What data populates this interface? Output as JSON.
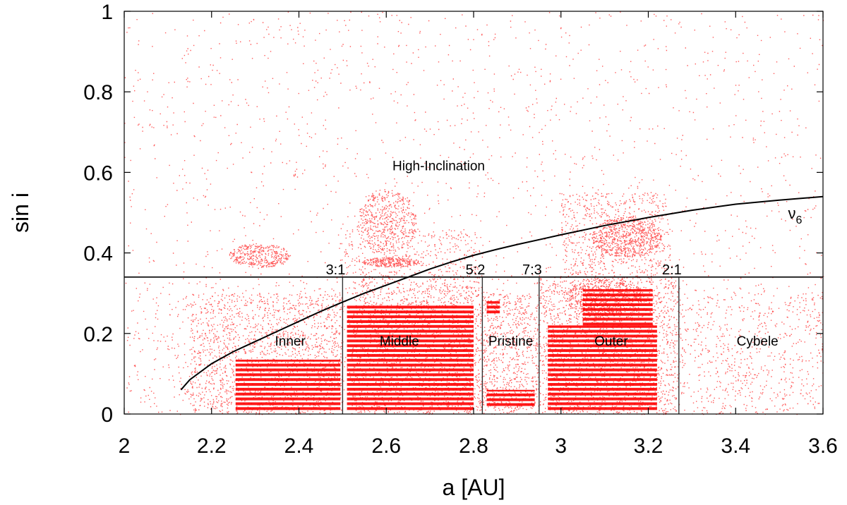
{
  "chart_data": {
    "type": "scatter",
    "xlabel": "a [AU]",
    "ylabel": "sin i",
    "xlim": [
      2,
      3.6
    ],
    "ylim": [
      0,
      1
    ],
    "x_ticks": [
      2,
      2.2,
      2.4,
      2.6,
      2.8,
      3,
      3.2,
      3.4,
      3.6
    ],
    "x_tick_labels": [
      "2",
      "2.2",
      "2.4",
      "2.6",
      "2.8",
      "3",
      "3.2",
      "3.4",
      "3.6"
    ],
    "y_ticks": [
      0,
      0.2,
      0.4,
      0.6,
      0.8,
      1
    ],
    "y_tick_labels": [
      "0",
      "0.2",
      "0.4",
      "0.6",
      "0.8",
      "1"
    ],
    "grid": false,
    "point_color": "#ff0000",
    "line_color": "#000000",
    "boundary_sin_i": 0.34,
    "resonances": [
      {
        "label": "3:1",
        "a": 2.5
      },
      {
        "label": "5:2",
        "a": 2.82
      },
      {
        "label": "7:3",
        "a": 2.95
      },
      {
        "label": "2:1",
        "a": 3.27
      }
    ],
    "regions": [
      {
        "label": "Inner",
        "a": 2.38,
        "sin_i": 0.17
      },
      {
        "label": "Middle",
        "a": 2.63,
        "sin_i": 0.17
      },
      {
        "label": "Pristine",
        "a": 2.885,
        "sin_i": 0.17
      },
      {
        "label": "Outer",
        "a": 3.115,
        "sin_i": 0.17
      },
      {
        "label": "Cybele",
        "a": 3.45,
        "sin_i": 0.17
      },
      {
        "label": "High-Inclination",
        "a": 2.72,
        "sin_i": 0.605
      }
    ],
    "nu6": {
      "label_main": "ν",
      "label_sub": "6",
      "label_a": 3.52,
      "label_sin_i": 0.485,
      "points": [
        [
          2.13,
          0.06
        ],
        [
          2.15,
          0.085
        ],
        [
          2.2,
          0.125
        ],
        [
          2.25,
          0.155
        ],
        [
          2.3,
          0.18
        ],
        [
          2.35,
          0.205
        ],
        [
          2.4,
          0.23
        ],
        [
          2.45,
          0.255
        ],
        [
          2.5,
          0.278
        ],
        [
          2.55,
          0.3
        ],
        [
          2.6,
          0.32
        ],
        [
          2.65,
          0.34
        ],
        [
          2.7,
          0.36
        ],
        [
          2.75,
          0.378
        ],
        [
          2.8,
          0.394
        ],
        [
          2.85,
          0.408
        ],
        [
          2.9,
          0.421
        ],
        [
          2.95,
          0.433
        ],
        [
          3.0,
          0.445
        ],
        [
          3.1,
          0.468
        ],
        [
          3.2,
          0.488
        ],
        [
          3.3,
          0.506
        ],
        [
          3.4,
          0.521
        ],
        [
          3.5,
          0.531
        ],
        [
          3.6,
          0.54
        ]
      ]
    }
  }
}
